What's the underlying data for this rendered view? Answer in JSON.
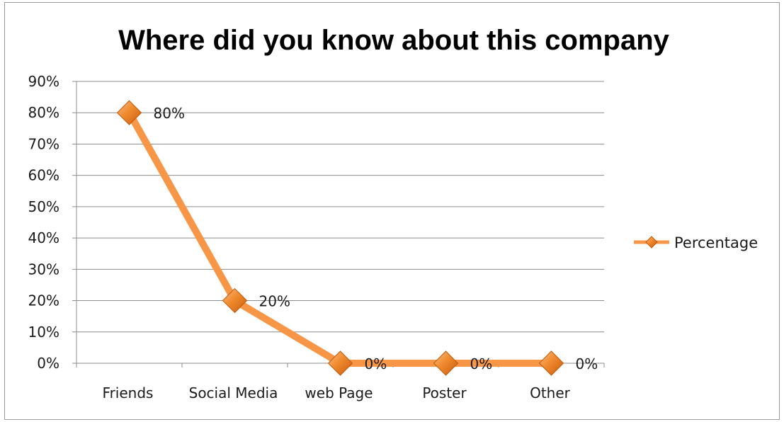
{
  "chart_data": {
    "type": "line",
    "title": "Where did you know about this company",
    "categories": [
      "Friends",
      "Social Media",
      "web Page",
      "Poster",
      "Other"
    ],
    "series": [
      {
        "name": "Percentage",
        "values": [
          80,
          20,
          0,
          0,
          0
        ],
        "data_labels": [
          "80%",
          "20%",
          "0%",
          "0%",
          "0%"
        ]
      }
    ],
    "yticks": [
      "0%",
      "10%",
      "20%",
      "30%",
      "40%",
      "50%",
      "60%",
      "70%",
      "80%",
      "90%"
    ],
    "ylim": [
      0,
      90
    ],
    "grid": true,
    "legend_position": "right",
    "colors": {
      "line": "#f79646",
      "marker": "#e46c0a",
      "marker_edge": "#c0580a",
      "grid": "#8c8c8c",
      "axis": "#8c8c8c"
    }
  }
}
